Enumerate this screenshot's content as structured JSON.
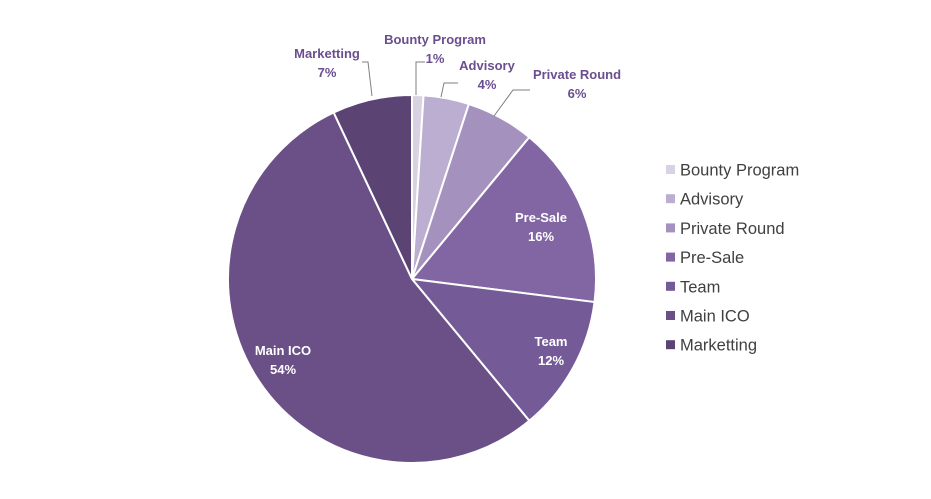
{
  "chart_data": {
    "type": "pie",
    "title": "",
    "legend_position": "right",
    "slices": [
      {
        "label": "Bounty Program",
        "value": 1,
        "pct_label": "1%",
        "color": "#d9d2e3"
      },
      {
        "label": "Advisory",
        "value": 4,
        "pct_label": "4%",
        "color": "#bcaed1"
      },
      {
        "label": "Private Round",
        "value": 6,
        "pct_label": "6%",
        "color": "#a491bd"
      },
      {
        "label": "Pre-Sale",
        "value": 16,
        "pct_label": "16%",
        "color": "#8266a4"
      },
      {
        "label": "Team",
        "value": 12,
        "pct_label": "12%",
        "color": "#745b97"
      },
      {
        "label": "Main ICO",
        "value": 54,
        "pct_label": "54%",
        "color": "#6a5087"
      },
      {
        "label": "Marketting",
        "value": 7,
        "pct_label": "7%",
        "color": "#5b4474"
      }
    ],
    "outside_label_color": "#6a4e8f",
    "inside_label_color": "#ffffff"
  }
}
